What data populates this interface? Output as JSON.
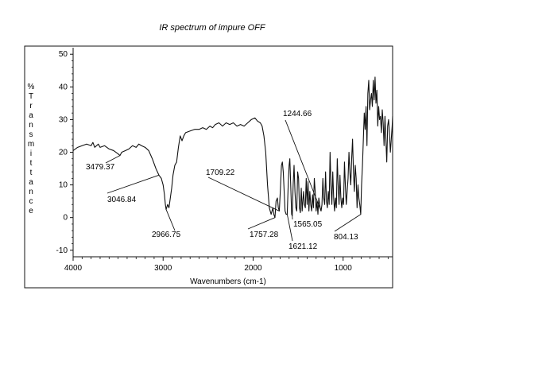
{
  "chart_data": {
    "type": "line",
    "title": "IR spectrum of impure OFF",
    "xlabel": "Wavenumbers (cm-1)",
    "ylabel": "%Transmittance",
    "xlim": [
      4000,
      450
    ],
    "ylim": [
      -12,
      52
    ],
    "x_reversed": true,
    "grid": false,
    "legend": "none",
    "x_ticks": [
      4000,
      3000,
      2000,
      1000
    ],
    "x_tick_labels": [
      "4000",
      "3000",
      "2000",
      "1000"
    ],
    "y_ticks": [
      -10,
      0,
      10,
      20,
      30,
      40,
      50
    ],
    "y_tick_labels": [
      "-10",
      "0",
      "10",
      "20",
      "30",
      "40",
      "50"
    ],
    "series": [
      {
        "color": "#111111",
        "points": [
          [
            4000,
            20.5
          ],
          [
            3950,
            21.5
          ],
          [
            3900,
            22
          ],
          [
            3850,
            22.5
          ],
          [
            3800,
            22
          ],
          [
            3780,
            23
          ],
          [
            3760,
            21.5
          ],
          [
            3720,
            22.5
          ],
          [
            3700,
            21.5
          ],
          [
            3650,
            22
          ],
          [
            3600,
            21
          ],
          [
            3550,
            20.5
          ],
          [
            3500,
            19.5
          ],
          [
            3479.37,
            19
          ],
          [
            3460,
            20
          ],
          [
            3420,
            20.5
          ],
          [
            3380,
            21
          ],
          [
            3340,
            22
          ],
          [
            3300,
            21.5
          ],
          [
            3270,
            22.5
          ],
          [
            3240,
            22
          ],
          [
            3200,
            21.5
          ],
          [
            3160,
            20.5
          ],
          [
            3120,
            18
          ],
          [
            3080,
            15
          ],
          [
            3046.84,
            13
          ],
          [
            3020,
            12
          ],
          [
            3000,
            10
          ],
          [
            2985,
            7
          ],
          [
            2975,
            4
          ],
          [
            2966.75,
            2.5
          ],
          [
            2950,
            4
          ],
          [
            2935,
            3
          ],
          [
            2925,
            5
          ],
          [
            2905,
            9
          ],
          [
            2890,
            13
          ],
          [
            2870,
            16
          ],
          [
            2850,
            17
          ],
          [
            2830,
            21.5
          ],
          [
            2810,
            25
          ],
          [
            2790,
            23.5
          ],
          [
            2770,
            25
          ],
          [
            2750,
            26
          ],
          [
            2700,
            26.5
          ],
          [
            2650,
            27
          ],
          [
            2600,
            27
          ],
          [
            2560,
            27.5
          ],
          [
            2520,
            27
          ],
          [
            2480,
            28
          ],
          [
            2450,
            27.5
          ],
          [
            2420,
            28.5
          ],
          [
            2380,
            29
          ],
          [
            2340,
            28
          ],
          [
            2300,
            29
          ],
          [
            2260,
            28.5
          ],
          [
            2220,
            29
          ],
          [
            2180,
            28
          ],
          [
            2140,
            28.5
          ],
          [
            2100,
            28
          ],
          [
            2060,
            29
          ],
          [
            2020,
            30
          ],
          [
            1980,
            30.5
          ],
          [
            1950,
            29.5
          ],
          [
            1920,
            29
          ],
          [
            1900,
            28
          ],
          [
            1880,
            25
          ],
          [
            1860,
            20
          ],
          [
            1840,
            10
          ],
          [
            1820,
            3
          ],
          [
            1800,
            1
          ],
          [
            1780,
            3
          ],
          [
            1770,
            1
          ],
          [
            1757.28,
            0
          ],
          [
            1745,
            5
          ],
          [
            1730,
            6
          ],
          [
            1720,
            3
          ],
          [
            1709.22,
            2
          ],
          [
            1698,
            8
          ],
          [
            1685,
            16
          ],
          [
            1675,
            17
          ],
          [
            1665,
            14
          ],
          [
            1655,
            8
          ],
          [
            1645,
            2
          ],
          [
            1633,
            1
          ],
          [
            1621.12,
            1
          ],
          [
            1610,
            10
          ],
          [
            1600,
            16
          ],
          [
            1592,
            18
          ],
          [
            1580,
            8
          ],
          [
            1572,
            1
          ],
          [
            1565.05,
            0.5
          ],
          [
            1555,
            10
          ],
          [
            1545,
            16
          ],
          [
            1535,
            8
          ],
          [
            1525,
            3
          ],
          [
            1515,
            2
          ],
          [
            1505,
            14
          ],
          [
            1495,
            12
          ],
          [
            1485,
            3
          ],
          [
            1475,
            1.5
          ],
          [
            1465,
            9
          ],
          [
            1455,
            2
          ],
          [
            1440,
            8
          ],
          [
            1430,
            4
          ],
          [
            1420,
            3
          ],
          [
            1410,
            12
          ],
          [
            1400,
            4
          ],
          [
            1390,
            11
          ],
          [
            1380,
            2
          ],
          [
            1370,
            8
          ],
          [
            1360,
            4
          ],
          [
            1350,
            2
          ],
          [
            1340,
            7
          ],
          [
            1330,
            3
          ],
          [
            1320,
            12
          ],
          [
            1310,
            8
          ],
          [
            1300,
            2
          ],
          [
            1290,
            5
          ],
          [
            1280,
            1
          ],
          [
            1270,
            6
          ],
          [
            1255,
            3
          ],
          [
            1244.66,
            2
          ],
          [
            1235,
            4
          ],
          [
            1225,
            12
          ],
          [
            1215,
            6
          ],
          [
            1205,
            4
          ],
          [
            1195,
            14
          ],
          [
            1185,
            5
          ],
          [
            1175,
            3
          ],
          [
            1165,
            8
          ],
          [
            1155,
            4
          ],
          [
            1145,
            20
          ],
          [
            1135,
            10
          ],
          [
            1125,
            4
          ],
          [
            1115,
            14
          ],
          [
            1105,
            6
          ],
          [
            1095,
            2
          ],
          [
            1085,
            6
          ],
          [
            1075,
            3
          ],
          [
            1065,
            18
          ],
          [
            1055,
            10
          ],
          [
            1045,
            4
          ],
          [
            1035,
            13
          ],
          [
            1025,
            6
          ],
          [
            1015,
            3
          ],
          [
            1005,
            6
          ],
          [
            995,
            4
          ],
          [
            985,
            17
          ],
          [
            975,
            10
          ],
          [
            965,
            4
          ],
          [
            955,
            8
          ],
          [
            945,
            12
          ],
          [
            935,
            20
          ],
          [
            925,
            14
          ],
          [
            915,
            10
          ],
          [
            905,
            18
          ],
          [
            895,
            24
          ],
          [
            885,
            14
          ],
          [
            875,
            8
          ],
          [
            865,
            16
          ],
          [
            855,
            12
          ],
          [
            845,
            3
          ],
          [
            835,
            10
          ],
          [
            825,
            6
          ],
          [
            815,
            4
          ],
          [
            804.13,
            1
          ],
          [
            795,
            10
          ],
          [
            785,
            16
          ],
          [
            775,
            24
          ],
          [
            765,
            32
          ],
          [
            755,
            27
          ],
          [
            745,
            34
          ],
          [
            735,
            22
          ],
          [
            725,
            38
          ],
          [
            715,
            42
          ],
          [
            705,
            33
          ],
          [
            695,
            36
          ],
          [
            685,
            38
          ],
          [
            675,
            34
          ],
          [
            665,
            42
          ],
          [
            655,
            36
          ],
          [
            645,
            43
          ],
          [
            635,
            35
          ],
          [
            625,
            39
          ],
          [
            615,
            28
          ],
          [
            605,
            34
          ],
          [
            595,
            30
          ],
          [
            585,
            31
          ],
          [
            575,
            26
          ],
          [
            565,
            33
          ],
          [
            555,
            29
          ],
          [
            545,
            22
          ],
          [
            535,
            31
          ],
          [
            525,
            24
          ],
          [
            515,
            17
          ],
          [
            505,
            28
          ],
          [
            495,
            30
          ],
          [
            485,
            26
          ],
          [
            475,
            20
          ],
          [
            465,
            24
          ],
          [
            455,
            28
          ],
          [
            450,
            31
          ]
        ]
      }
    ],
    "annotations": [
      {
        "text": "3479.37",
        "x": 3479.37,
        "y": 19
      },
      {
        "text": "3046.84",
        "x": 3046.84,
        "y": 13
      },
      {
        "text": "2966.75",
        "x": 2966.75,
        "y": 2.5
      },
      {
        "text": "1709.22",
        "x": 1709.22,
        "y": 2
      },
      {
        "text": "1757.28",
        "x": 1757.28,
        "y": 0
      },
      {
        "text": "1621.12",
        "x": 1621.12,
        "y": 1
      },
      {
        "text": "1565.05",
        "x": 1565.05,
        "y": 0.5
      },
      {
        "text": "1244.66",
        "x": 1244.66,
        "y": 2
      },
      {
        "text": "804.13",
        "x": 804.13,
        "y": 1
      }
    ]
  }
}
